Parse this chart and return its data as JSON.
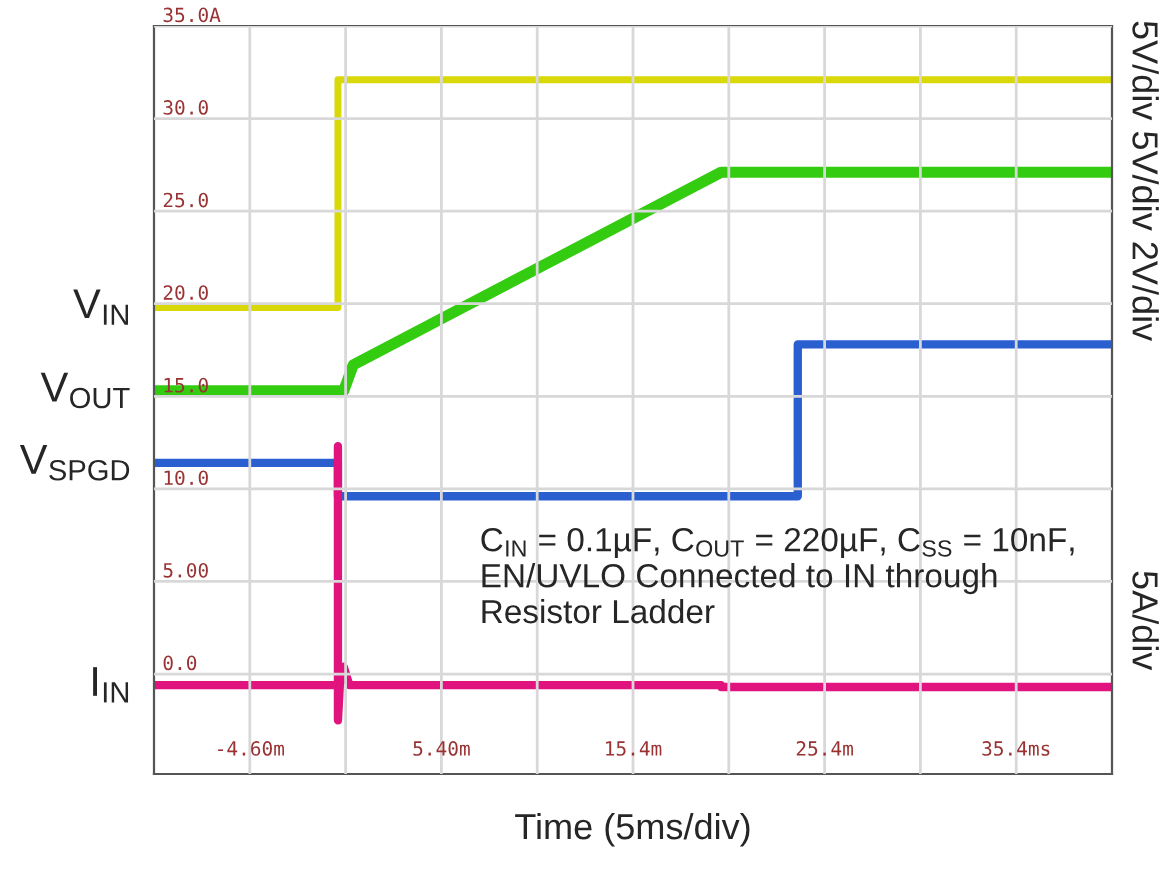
{
  "chart_data": {
    "type": "line",
    "xlabel": "Time (5ms/div)",
    "xlim": [
      -9.6,
      40.4
    ],
    "ylim": [
      -5.4,
      35
    ],
    "xticks": [
      {
        "value": -4.6,
        "label": "-4.60m"
      },
      {
        "value": 0.4,
        "label": null
      },
      {
        "value": 5.4,
        "label": "5.40m"
      },
      {
        "value": 10.4,
        "label": null
      },
      {
        "value": 15.4,
        "label": "15.4m"
      },
      {
        "value": 20.4,
        "label": null
      },
      {
        "value": 25.4,
        "label": "25.4m"
      },
      {
        "value": 30.4,
        "label": null
      },
      {
        "value": 35.4,
        "label": "35.4ms"
      }
    ],
    "yticks": [
      {
        "value": 0,
        "label": "0.0"
      },
      {
        "value": 5,
        "label": "5.00"
      },
      {
        "value": 10,
        "label": "10.0"
      },
      {
        "value": 15,
        "label": "15.0"
      },
      {
        "value": 20,
        "label": "20.0"
      },
      {
        "value": 25,
        "label": "25.0"
      },
      {
        "value": 30,
        "label": "30.0"
      },
      {
        "value": 35,
        "label": "35.0A"
      }
    ],
    "grid": true,
    "legend": false,
    "series": [
      {
        "name": "V$_{IN}$",
        "color": "#d9d90a",
        "x": [
          -9.6,
          0.0,
          0.0,
          40.4
        ],
        "values": [
          19.8,
          19.8,
          32.1,
          32.1
        ]
      },
      {
        "name": "V$_{OUT}$",
        "color": "#33cc11",
        "x": [
          -9.6,
          0.3,
          0.8,
          20.0,
          40.4
        ],
        "values": [
          15.3,
          15.3,
          16.7,
          27.1,
          27.1
        ]
      },
      {
        "name": "V$_{SPGD}$",
        "color": "#2a5fd0",
        "x": [
          -9.6,
          0.0,
          0.0,
          24.0,
          24.0,
          40.4
        ],
        "values": [
          11.4,
          11.4,
          9.6,
          9.6,
          17.8,
          17.8
        ]
      },
      {
        "name": "I$_{IN}$",
        "color": "#e0137f",
        "x": [
          -9.6,
          0.0,
          0.0,
          0.0,
          0.1,
          0.3,
          0.6,
          20.0,
          20.0,
          40.4
        ],
        "values": [
          -0.6,
          -0.6,
          12.3,
          -2.5,
          -0.6,
          0.4,
          -0.6,
          -0.6,
          -0.7,
          -0.7
        ]
      }
    ],
    "annotations": [
      "C$_{IN}$ = 0.1µF, C$_{OUT}$ = 220µF, C$_{SS}$ = 10nF,\nEN/UVLO Connected to IN through\nResistor Ladder",
      "5V/div 5V/div 2V/div",
      "5A/div"
    ]
  }
}
